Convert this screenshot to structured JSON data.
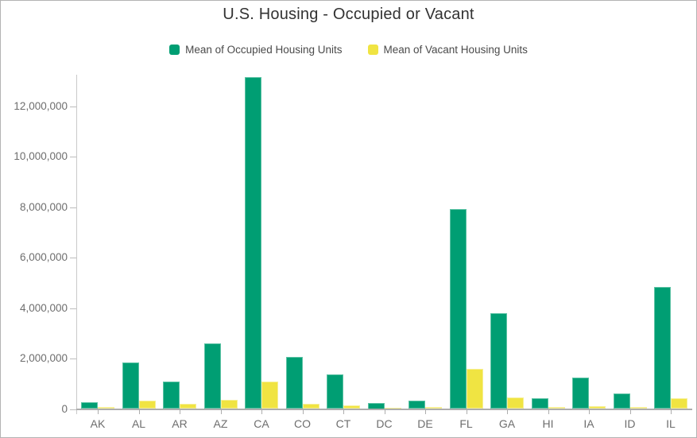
{
  "title": "U.S. Housing - Occupied or Vacant",
  "legend": [
    {
      "label": "Mean of Occupied Housing Units",
      "color": "#009e73"
    },
    {
      "label": "Mean of Vacant Housing Units",
      "color": "#f0e442"
    }
  ],
  "colors": {
    "occupied": "#009e73",
    "vacant": "#f0e442",
    "axis": "#c9c9c9",
    "baseline": "#adadad",
    "tick_label": "#6e6e6e",
    "title_text": "#323232",
    "legend_text": "#4a4a4a",
    "frame_border": "#b3b3b3"
  },
  "y_axis_labels": [
    "0",
    "2,000,000",
    "4,000,000",
    "6,000,000",
    "8,000,000",
    "10,000,000",
    "12,000,000"
  ],
  "chart_data": {
    "type": "bar",
    "title": "U.S. Housing - Occupied or Vacant",
    "xlabel": "",
    "ylabel": "",
    "categories": [
      "AK",
      "AL",
      "AR",
      "AZ",
      "CA",
      "CO",
      "CT",
      "DC",
      "DE",
      "FL",
      "GA",
      "HI",
      "IA",
      "ID",
      "IL"
    ],
    "series": [
      {
        "name": "Mean of Occupied Housing Units",
        "color": "#009e73",
        "values": [
          280000,
          1840000,
          1100000,
          2600000,
          13150000,
          2060000,
          1360000,
          250000,
          340000,
          7920000,
          3800000,
          430000,
          1230000,
          620000,
          4850000
        ]
      },
      {
        "name": "Mean of Vacant Housing Units",
        "color": "#f0e442",
        "values": [
          75000,
          330000,
          200000,
          360000,
          1090000,
          200000,
          130000,
          40000,
          70000,
          1600000,
          470000,
          65000,
          120000,
          65000,
          440000
        ]
      }
    ],
    "yticks": [
      0,
      2000000,
      4000000,
      6000000,
      8000000,
      10000000,
      12000000
    ],
    "ylim": [
      0,
      13200000
    ],
    "grid": false,
    "legend_position": "top"
  }
}
